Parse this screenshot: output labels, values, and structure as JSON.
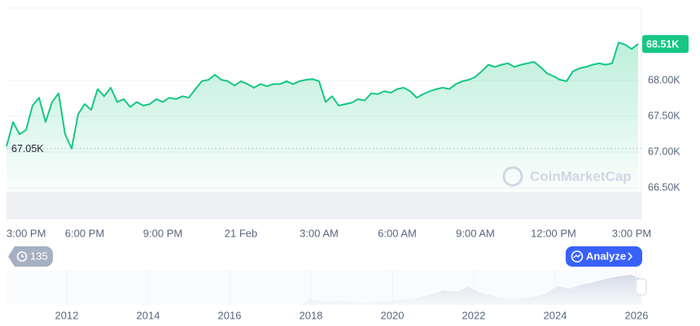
{
  "chart_data": {
    "type": "line",
    "categories": [
      "3:00 PM",
      null,
      null,
      null,
      null,
      null,
      null,
      null,
      null,
      null,
      null,
      null,
      "6:00 PM",
      null,
      null,
      null,
      null,
      null,
      null,
      null,
      null,
      null,
      null,
      null,
      "9:00 PM",
      null,
      null,
      null,
      null,
      null,
      null,
      null,
      null,
      null,
      null,
      null,
      "21 Feb",
      null,
      null,
      null,
      null,
      null,
      null,
      null,
      null,
      null,
      null,
      null,
      "3:00 AM",
      null,
      null,
      null,
      null,
      null,
      null,
      null,
      null,
      null,
      null,
      null,
      "6:00 AM",
      null,
      null,
      null,
      null,
      null,
      null,
      null,
      null,
      null,
      null,
      null,
      "9:00 AM",
      null,
      null,
      null,
      null,
      null,
      null,
      null,
      null,
      null,
      null,
      null,
      "12:00 PM",
      null,
      null,
      null,
      null,
      null,
      null,
      null,
      null,
      null,
      null,
      null,
      "3:00 PM",
      null
    ],
    "series": [
      {
        "color": "#16c784",
        "values": [
          67.08,
          67.42,
          67.25,
          67.31,
          67.65,
          67.76,
          67.42,
          67.7,
          67.82,
          67.25,
          67.05,
          67.53,
          67.67,
          67.59,
          67.88,
          67.78,
          67.9,
          67.7,
          67.74,
          67.63,
          67.7,
          67.65,
          67.67,
          67.74,
          67.7,
          67.76,
          67.74,
          67.78,
          67.76,
          67.88,
          67.99,
          68.01,
          68.08,
          68.01,
          67.99,
          67.93,
          67.99,
          67.95,
          67.9,
          67.95,
          67.92,
          67.95,
          67.95,
          67.99,
          67.95,
          67.99,
          68.01,
          68.02,
          67.99,
          67.7,
          67.78,
          67.65,
          67.67,
          67.69,
          67.74,
          67.72,
          67.82,
          67.81,
          67.85,
          67.83,
          67.88,
          67.9,
          67.85,
          67.76,
          67.81,
          67.85,
          67.88,
          67.9,
          67.88,
          67.95,
          67.99,
          68.01,
          68.05,
          68.13,
          68.22,
          68.19,
          68.22,
          68.24,
          68.19,
          68.22,
          68.24,
          68.26,
          68.19,
          68.1,
          68.06,
          68.01,
          67.99,
          68.13,
          68.17,
          68.19,
          68.22,
          68.24,
          68.22,
          68.24,
          68.53,
          68.5,
          68.44,
          68.51
        ]
      }
    ],
    "ylim": [
      66.06,
      69.01
    ],
    "yticks": [
      {
        "value": 66.5,
        "label": "66.50K"
      },
      {
        "value": 67,
        "label": "67.00K"
      },
      {
        "value": 67.5,
        "label": "67.50K"
      },
      {
        "value": 68,
        "label": "68.00K"
      }
    ],
    "grid": true,
    "reference": {
      "value": 67.05,
      "label": "67.05K"
    },
    "current": {
      "value": 68.51,
      "label": "68.51K"
    },
    "watermark": "CoinMarketCap",
    "navigator_labels": [
      "2012",
      "2014",
      "2016",
      "2018",
      "2020",
      "2022",
      "2024",
      "2026"
    ]
  },
  "controls": {
    "history": 135,
    "analyze": "Analyze"
  }
}
